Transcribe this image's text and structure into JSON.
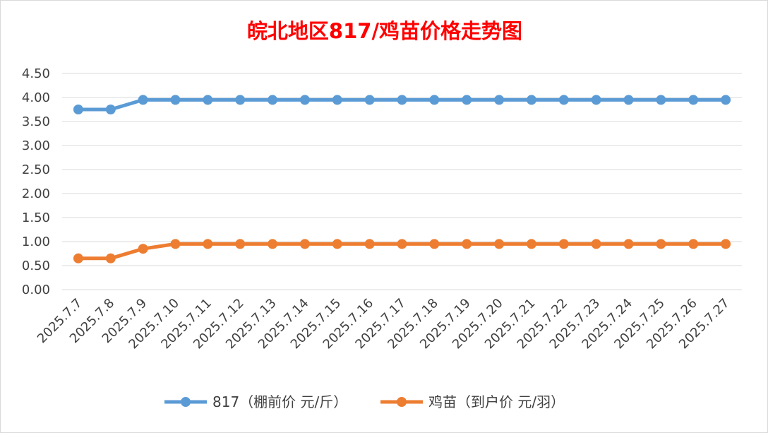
{
  "chart_data": {
    "type": "line",
    "title": "皖北地区817/鸡苗价格走势图",
    "title_color": "#ff0000",
    "xlabel": "",
    "ylabel": "",
    "ylim": [
      0,
      4.5
    ],
    "yticks": [
      "0.00",
      "0.50",
      "1.00",
      "1.50",
      "2.00",
      "2.50",
      "3.00",
      "3.50",
      "4.00",
      "4.50"
    ],
    "grid": true,
    "legend_position": "bottom",
    "categories": [
      "2025.7.7",
      "2025.7.8",
      "2025.7.9",
      "2025.7.10",
      "2025.7.11",
      "2025.7.12",
      "2025.7.13",
      "2025.7.14",
      "2025.7.15",
      "2025.7.16",
      "2025.7.17",
      "2025.7.18",
      "2025.7.19",
      "2025.7.20",
      "2025.7.21",
      "2025.7.22",
      "2025.7.23",
      "2025.7.24",
      "2025.7.25",
      "2025.7.26",
      "2025.7.27"
    ],
    "series": [
      {
        "name": "817（棚前价 元/斤）",
        "color": "#5b9bd5",
        "values": [
          3.75,
          3.75,
          3.95,
          3.95,
          3.95,
          3.95,
          3.95,
          3.95,
          3.95,
          3.95,
          3.95,
          3.95,
          3.95,
          3.95,
          3.95,
          3.95,
          3.95,
          3.95,
          3.95,
          3.95,
          3.95
        ]
      },
      {
        "name": "鸡苗（到户价 元/羽）",
        "color": "#ed7d31",
        "values": [
          0.65,
          0.65,
          0.85,
          0.95,
          0.95,
          0.95,
          0.95,
          0.95,
          0.95,
          0.95,
          0.95,
          0.95,
          0.95,
          0.95,
          0.95,
          0.95,
          0.95,
          0.95,
          0.95,
          0.95,
          0.95
        ]
      }
    ]
  }
}
